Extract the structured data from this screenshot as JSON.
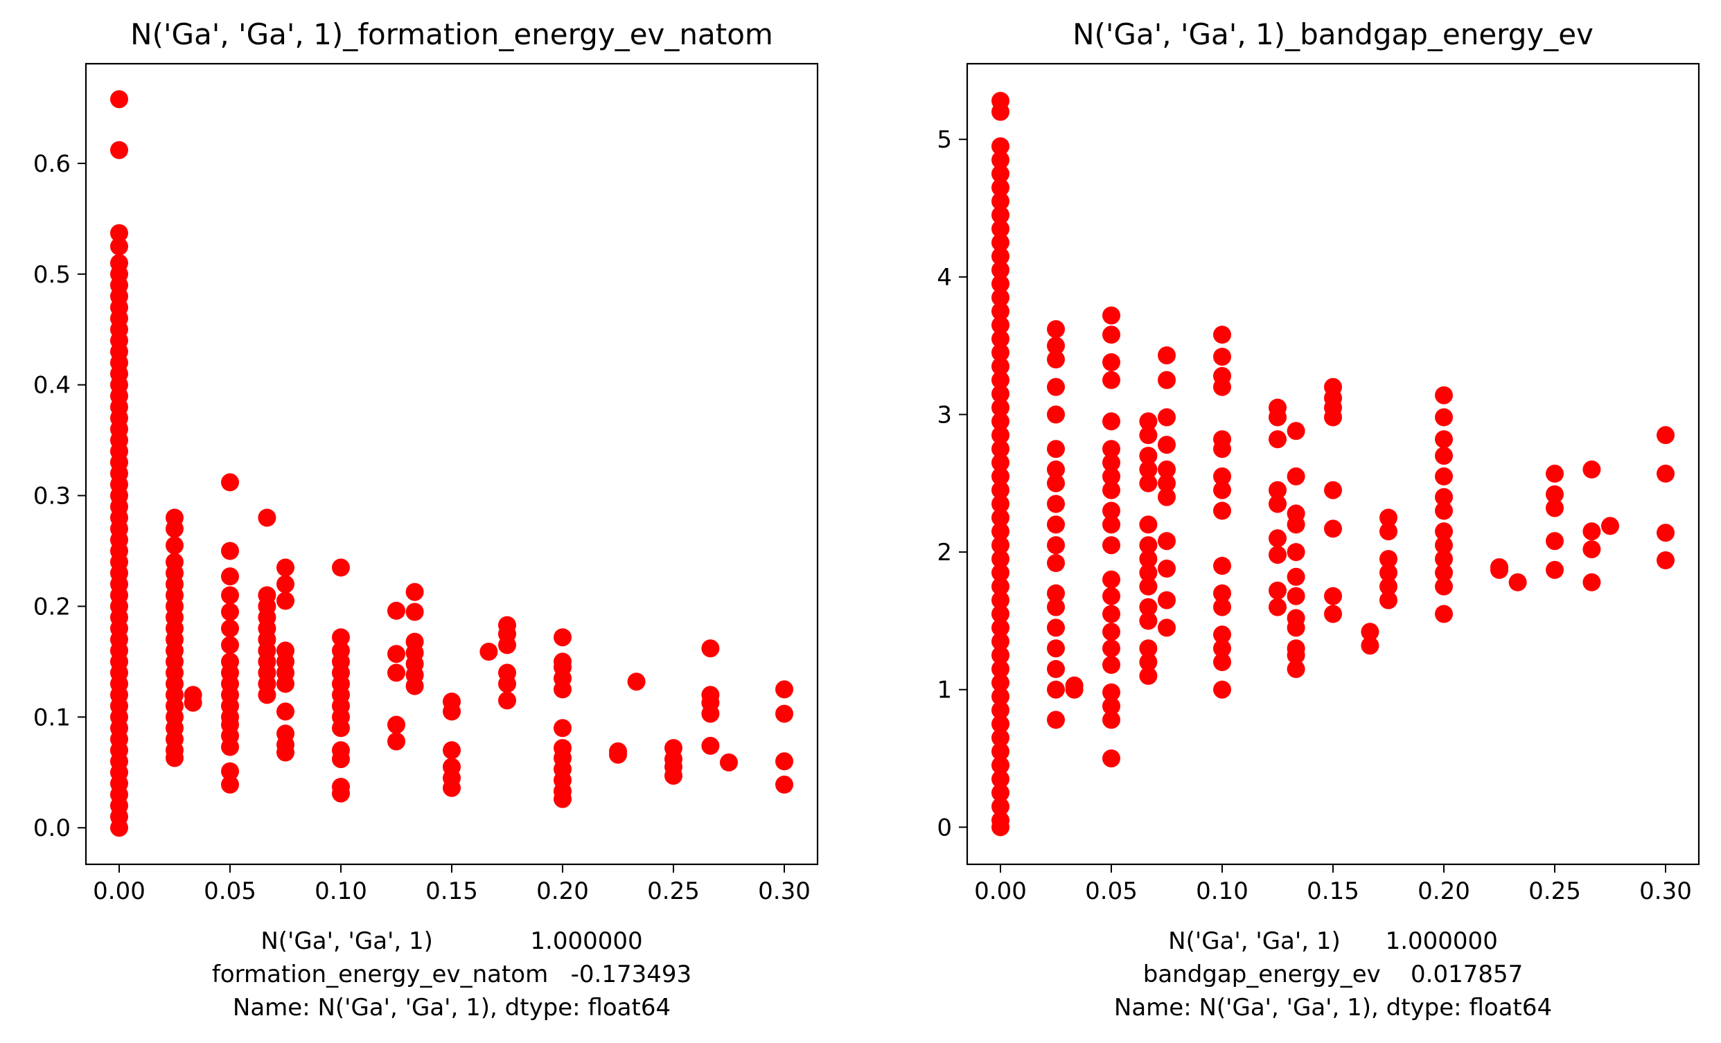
{
  "chart_data": [
    {
      "type": "scatter",
      "title": "N('Ga', 'Ga', 1)_formation_energy_ev_natom",
      "xlabel_lines": [
        "N('Ga', 'Ga', 1)             1.000000",
        "formation_energy_ev_natom   -0.173493",
        "Name: N('Ga', 'Ga', 1), dtype: float64"
      ],
      "ylabel": "",
      "xlim": [
        -0.015,
        0.315
      ],
      "ylim": [
        -0.033,
        0.69
      ],
      "xticks": [
        0.0,
        0.05,
        0.1,
        0.15,
        0.2,
        0.25,
        0.3
      ],
      "xtick_labels": [
        "0.00",
        "0.05",
        "0.10",
        "0.15",
        "0.20",
        "0.25",
        "0.30"
      ],
      "yticks": [
        0.0,
        0.1,
        0.2,
        0.3,
        0.4,
        0.5,
        0.6
      ],
      "ytick_labels": [
        "0.0",
        "0.1",
        "0.2",
        "0.3",
        "0.4",
        "0.5",
        "0.6"
      ],
      "grid": false,
      "marker_color": "#ff0000",
      "columns": [
        {
          "x": 0.0,
          "y": [
            0.0,
            0.01,
            0.02,
            0.03,
            0.04,
            0.05,
            0.06,
            0.07,
            0.08,
            0.09,
            0.1,
            0.11,
            0.12,
            0.13,
            0.14,
            0.15,
            0.16,
            0.17,
            0.18,
            0.19,
            0.2,
            0.21,
            0.22,
            0.23,
            0.24,
            0.25,
            0.26,
            0.27,
            0.28,
            0.29,
            0.3,
            0.31,
            0.32,
            0.33,
            0.34,
            0.35,
            0.36,
            0.37,
            0.38,
            0.39,
            0.4,
            0.41,
            0.42,
            0.43,
            0.44,
            0.45,
            0.46,
            0.47,
            0.48,
            0.49,
            0.5,
            0.51,
            0.525,
            0.537,
            0.612,
            0.658
          ]
        },
        {
          "x": 0.025,
          "y": [
            0.063,
            0.07,
            0.08,
            0.09,
            0.1,
            0.11,
            0.12,
            0.13,
            0.14,
            0.15,
            0.16,
            0.17,
            0.18,
            0.19,
            0.2,
            0.21,
            0.22,
            0.23,
            0.24,
            0.255,
            0.27,
            0.28
          ]
        },
        {
          "x": 0.0333,
          "y": [
            0.113,
            0.12
          ]
        },
        {
          "x": 0.05,
          "y": [
            0.039,
            0.051,
            0.073,
            0.083,
            0.093,
            0.1,
            0.11,
            0.12,
            0.13,
            0.14,
            0.15,
            0.165,
            0.18,
            0.195,
            0.21,
            0.227,
            0.25,
            0.312
          ]
        },
        {
          "x": 0.0667,
          "y": [
            0.12,
            0.13,
            0.14,
            0.15,
            0.16,
            0.17,
            0.18,
            0.19,
            0.2,
            0.21,
            0.28
          ]
        },
        {
          "x": 0.075,
          "y": [
            0.068,
            0.075,
            0.085,
            0.105,
            0.13,
            0.14,
            0.15,
            0.16,
            0.205,
            0.22,
            0.235
          ]
        },
        {
          "x": 0.1,
          "y": [
            0.031,
            0.037,
            0.062,
            0.07,
            0.09,
            0.1,
            0.11,
            0.12,
            0.13,
            0.14,
            0.15,
            0.16,
            0.172,
            0.235
          ]
        },
        {
          "x": 0.125,
          "y": [
            0.078,
            0.093,
            0.14,
            0.157,
            0.196
          ]
        },
        {
          "x": 0.1333,
          "y": [
            0.128,
            0.138,
            0.148,
            0.158,
            0.168,
            0.195,
            0.213
          ]
        },
        {
          "x": 0.15,
          "y": [
            0.036,
            0.045,
            0.055,
            0.07,
            0.105,
            0.114
          ]
        },
        {
          "x": 0.1667,
          "y": [
            0.159
          ]
        },
        {
          "x": 0.175,
          "y": [
            0.115,
            0.13,
            0.14,
            0.165,
            0.175,
            0.183
          ]
        },
        {
          "x": 0.2,
          "y": [
            0.026,
            0.033,
            0.043,
            0.053,
            0.063,
            0.072,
            0.09,
            0.125,
            0.135,
            0.145,
            0.15,
            0.172
          ]
        },
        {
          "x": 0.225,
          "y": [
            0.066,
            0.069
          ]
        },
        {
          "x": 0.2333,
          "y": [
            0.132
          ]
        },
        {
          "x": 0.25,
          "y": [
            0.047,
            0.055,
            0.062,
            0.072
          ]
        },
        {
          "x": 0.2667,
          "y": [
            0.074,
            0.103,
            0.113,
            0.12,
            0.162
          ]
        },
        {
          "x": 0.275,
          "y": [
            0.059
          ]
        },
        {
          "x": 0.3,
          "y": [
            0.039,
            0.06,
            0.103,
            0.125
          ]
        }
      ]
    },
    {
      "type": "scatter",
      "title": "N('Ga', 'Ga', 1)_bandgap_energy_ev",
      "xlabel_lines": [
        "N('Ga', 'Ga', 1)      1.000000",
        "bandgap_energy_ev    0.017857",
        "Name: N('Ga', 'Ga', 1), dtype: float64"
      ],
      "ylabel": "",
      "xlim": [
        -0.015,
        0.315
      ],
      "ylim": [
        -0.27,
        5.55
      ],
      "xticks": [
        0.0,
        0.05,
        0.1,
        0.15,
        0.2,
        0.25,
        0.3
      ],
      "xtick_labels": [
        "0.00",
        "0.05",
        "0.10",
        "0.15",
        "0.20",
        "0.25",
        "0.30"
      ],
      "yticks": [
        0,
        1,
        2,
        3,
        4,
        5
      ],
      "ytick_labels": [
        "0",
        "1",
        "2",
        "3",
        "4",
        "5"
      ],
      "grid": false,
      "marker_color": "#ff0000",
      "columns": [
        {
          "x": 0.0,
          "y": [
            0.0,
            0.05,
            0.15,
            0.25,
            0.35,
            0.45,
            0.55,
            0.65,
            0.75,
            0.85,
            0.95,
            1.05,
            1.15,
            1.25,
            1.35,
            1.45,
            1.55,
            1.65,
            1.75,
            1.85,
            1.95,
            2.05,
            2.15,
            2.25,
            2.35,
            2.45,
            2.55,
            2.65,
            2.75,
            2.85,
            2.95,
            3.05,
            3.15,
            3.25,
            3.35,
            3.45,
            3.55,
            3.65,
            3.75,
            3.85,
            3.95,
            4.05,
            4.15,
            4.25,
            4.35,
            4.45,
            4.55,
            4.65,
            4.75,
            4.85,
            4.95,
            5.2,
            5.28
          ]
        },
        {
          "x": 0.025,
          "y": [
            0.78,
            1.0,
            1.15,
            1.3,
            1.45,
            1.6,
            1.7,
            1.92,
            2.05,
            2.2,
            2.35,
            2.5,
            2.6,
            2.75,
            3.0,
            3.2,
            3.4,
            3.5,
            3.62
          ]
        },
        {
          "x": 0.0333,
          "y": [
            1.0,
            1.03
          ]
        },
        {
          "x": 0.05,
          "y": [
            0.5,
            0.78,
            0.88,
            0.98,
            1.18,
            1.3,
            1.42,
            1.55,
            1.68,
            1.8,
            2.05,
            2.2,
            2.3,
            2.45,
            2.55,
            2.65,
            2.75,
            2.95,
            3.25,
            3.38,
            3.58,
            3.72
          ]
        },
        {
          "x": 0.0667,
          "y": [
            1.1,
            1.2,
            1.3,
            1.5,
            1.6,
            1.75,
            1.85,
            1.95,
            2.05,
            2.2,
            2.5,
            2.6,
            2.7,
            2.85,
            2.95
          ]
        },
        {
          "x": 0.075,
          "y": [
            1.45,
            1.65,
            1.88,
            2.08,
            2.4,
            2.5,
            2.6,
            2.78,
            2.98,
            3.25,
            3.43
          ]
        },
        {
          "x": 0.1,
          "y": [
            1.0,
            1.2,
            1.3,
            1.4,
            1.6,
            1.7,
            1.9,
            2.3,
            2.45,
            2.55,
            2.75,
            2.82,
            3.2,
            3.28,
            3.42,
            3.58
          ]
        },
        {
          "x": 0.125,
          "y": [
            1.6,
            1.72,
            1.98,
            2.1,
            2.35,
            2.45,
            2.82,
            2.98,
            3.05
          ]
        },
        {
          "x": 0.1333,
          "y": [
            1.15,
            1.25,
            1.3,
            1.45,
            1.52,
            1.68,
            1.82,
            2.0,
            2.2,
            2.28,
            2.55,
            2.88
          ]
        },
        {
          "x": 0.15,
          "y": [
            1.55,
            1.68,
            2.17,
            2.45,
            2.98,
            3.05,
            3.12,
            3.2
          ]
        },
        {
          "x": 0.1667,
          "y": [
            1.32,
            1.42
          ]
        },
        {
          "x": 0.175,
          "y": [
            1.65,
            1.75,
            1.85,
            1.95,
            2.15,
            2.25
          ]
        },
        {
          "x": 0.2,
          "y": [
            1.55,
            1.75,
            1.85,
            1.95,
            2.05,
            2.15,
            2.3,
            2.4,
            2.55,
            2.7,
            2.82,
            2.98,
            3.14
          ]
        },
        {
          "x": 0.225,
          "y": [
            1.87,
            1.89
          ]
        },
        {
          "x": 0.2333,
          "y": [
            1.78
          ]
        },
        {
          "x": 0.25,
          "y": [
            1.87,
            2.08,
            2.32,
            2.42,
            2.57
          ]
        },
        {
          "x": 0.2667,
          "y": [
            1.78,
            2.02,
            2.15,
            2.6
          ]
        },
        {
          "x": 0.275,
          "y": [
            2.19
          ]
        },
        {
          "x": 0.3,
          "y": [
            1.94,
            2.14,
            2.57,
            2.85
          ]
        }
      ]
    }
  ]
}
